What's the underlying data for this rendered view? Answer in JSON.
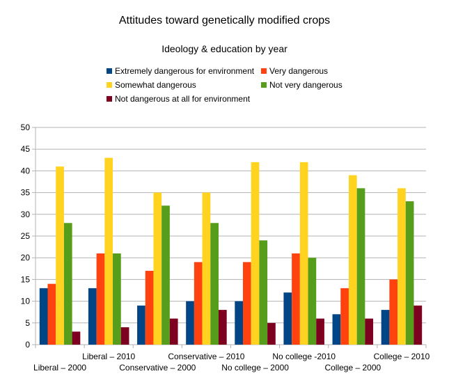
{
  "chart_data": {
    "type": "bar",
    "title": "Attitudes toward genetically modified crops",
    "subtitle": "Ideology & education by year",
    "categories": [
      "Liberal – 2000",
      "Liberal – 2010",
      "Conservative – 2000",
      "Conservative – 2010",
      "No college – 2000",
      "No college -2010",
      "College – 2000",
      "College – 2010"
    ],
    "series": [
      {
        "name": "Extremely dangerous for environment",
        "color": "#004586",
        "values": [
          13,
          13,
          9,
          10,
          10,
          12,
          7,
          8
        ]
      },
      {
        "name": "Very dangerous",
        "color": "#ff420e",
        "values": [
          14,
          21,
          17,
          19,
          19,
          21,
          13,
          15
        ]
      },
      {
        "name": "Somewhat dangerous",
        "color": "#ffd320",
        "values": [
          41,
          43,
          35,
          35,
          42,
          42,
          39,
          36
        ]
      },
      {
        "name": "Not very dangerous",
        "color": "#579d1c",
        "values": [
          28,
          21,
          32,
          28,
          24,
          20,
          36,
          33
        ]
      },
      {
        "name": "Not dangerous at all for environment",
        "color": "#7e0021",
        "values": [
          3,
          4,
          6,
          8,
          5,
          6,
          6,
          9
        ]
      }
    ],
    "ylim": [
      0,
      50
    ],
    "yticks": [
      0,
      5,
      10,
      15,
      20,
      25,
      30,
      35,
      40,
      45,
      50
    ],
    "xlabel": "",
    "ylabel": "",
    "grid": true,
    "legend_position": "top"
  }
}
